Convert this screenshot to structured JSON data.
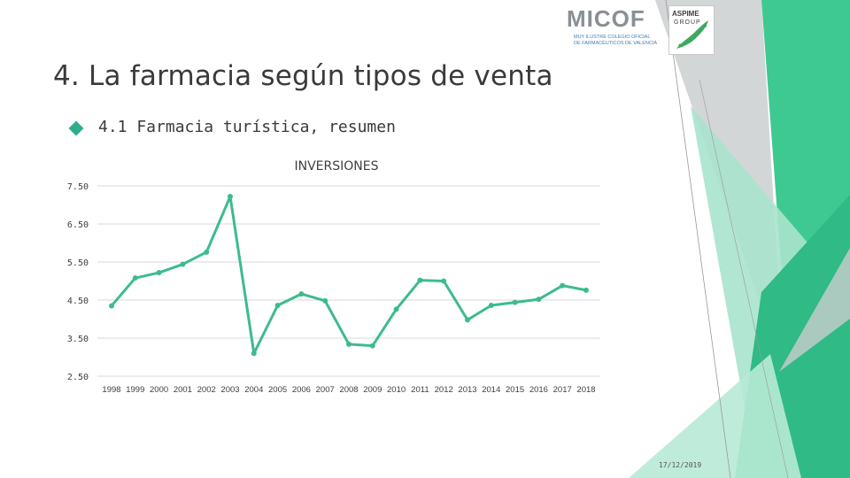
{
  "slide": {
    "title": "4. La farmacia según tipos de venta",
    "subtitle": "4.1 Farmacia turística, resumen",
    "date": "17/12/2019"
  },
  "logos": {
    "micof": {
      "text": "MICOF",
      "line1": "MUY ILUSTRE COLEGIO OFICIAL",
      "line2": "DE FARMACÉUTICOS DE VALENCIA"
    },
    "aspime": {
      "text": "ASPIME",
      "sub": "GROUP"
    }
  },
  "colors": {
    "accent": "#2fae8b",
    "line": "#3cbc8c",
    "deco_dark": "#2fba86",
    "deco_light": "#a9e3cd",
    "deco_gray": "#bfc4c4",
    "text": "#3a3a3a"
  },
  "chart_data": {
    "type": "line",
    "title": "INVERSIONES",
    "categories": [
      "1998",
      "1999",
      "2000",
      "2001",
      "2002",
      "2003",
      "2004",
      "2005",
      "2006",
      "2007",
      "2008",
      "2009",
      "2010",
      "2011",
      "2012",
      "2013",
      "2014",
      "2015",
      "2016",
      "2017",
      "2018"
    ],
    "series": [
      {
        "values": [
          4.35,
          5.08,
          5.22,
          5.44,
          5.76,
          7.22,
          3.1,
          4.36,
          4.66,
          4.48,
          3.34,
          3.3,
          4.26,
          5.02,
          5.0,
          3.98,
          4.36,
          4.44,
          4.52,
          4.88,
          4.76
        ]
      }
    ],
    "yticks": [
      "7.50",
      "6.50",
      "5.50",
      "4.50",
      "3.50",
      "2.50"
    ],
    "ylim": [
      2.5,
      7.5
    ],
    "grid": true,
    "xlabel": "",
    "ylabel": ""
  }
}
